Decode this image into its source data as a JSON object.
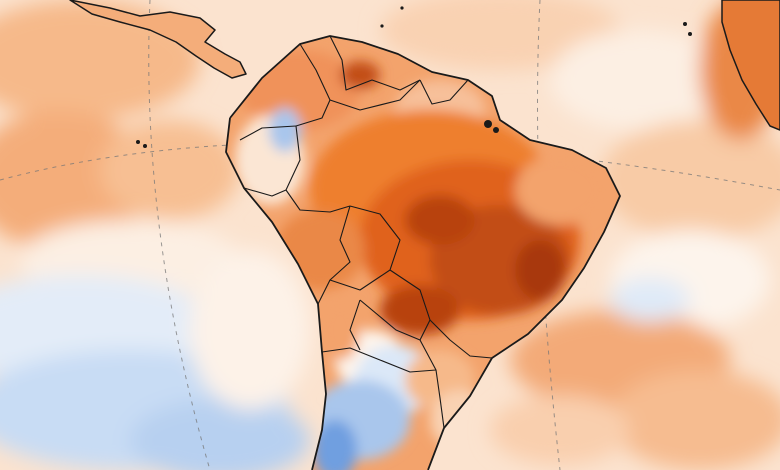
{
  "map": {
    "kind": "temperature-anomaly-map",
    "region": "South America",
    "projection": "orthographic-globe",
    "colors": {
      "ocean_base": "#fbe3cf",
      "warm_light": "#f9c9a3",
      "warm_mid": "#f3a36c",
      "warm_strong": "#ee7f2f",
      "warm_hot": "#e0621a",
      "warm_extreme": "#b8420f",
      "neutral": "#fdf4ec",
      "cool_light": "#dbe8f8",
      "cool_mid": "#a9c6ec",
      "cool_strong": "#6f9fe0",
      "border_line": "#1a1a1a",
      "graticule": "#777777"
    }
  }
}
